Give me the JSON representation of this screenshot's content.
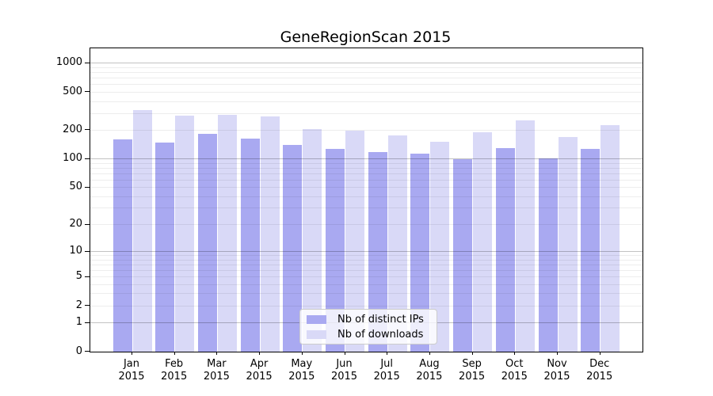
{
  "chart": {
    "title": "GeneRegionScan 2015"
  },
  "legend": {
    "items": [
      {
        "label": "Nb of distinct IPs",
        "key": "ips"
      },
      {
        "label": "Nb of downloads",
        "key": "downloads"
      }
    ]
  },
  "colors": {
    "ips": "#a9a9f1",
    "downloads": "#d9d9f7",
    "grid_major": "rgba(0,0,0,0.24)",
    "grid_minor": "rgba(0,0,0,0.07)",
    "axis": "#000000",
    "legend_border": "#cccccc",
    "legend_bg": "rgba(255,255,255,0.8)"
  },
  "x_axis": {
    "year": "2015",
    "months": [
      "Jan",
      "Feb",
      "Mar",
      "Apr",
      "May",
      "Jun",
      "Jul",
      "Aug",
      "Sep",
      "Oct",
      "Nov",
      "Dec"
    ]
  },
  "y_axis": {
    "tick_labels": [
      1000,
      500,
      200,
      100,
      50,
      20,
      10,
      5,
      2,
      1,
      0
    ],
    "scale": "log10(x+1)"
  },
  "chart_data": {
    "type": "bar",
    "title": "GeneRegionScan 2015",
    "categories": [
      "Jan 2015",
      "Feb 2015",
      "Mar 2015",
      "Apr 2015",
      "May 2015",
      "Jun 2015",
      "Jul 2015",
      "Aug 2015",
      "Sep 2015",
      "Oct 2015",
      "Nov 2015",
      "Dec 2015"
    ],
    "series": [
      {
        "name": "Nb of distinct IPs",
        "values": [
          161,
          150,
          183,
          164,
          141,
          128,
          119,
          113,
          100,
          131,
          102,
          127
        ]
      },
      {
        "name": "Nb of downloads",
        "values": [
          327,
          285,
          291,
          277,
          204,
          199,
          177,
          152,
          192,
          255,
          169,
          224
        ]
      }
    ],
    "xlabel": "",
    "ylabel": "",
    "y_ticks": [
      0,
      1,
      2,
      5,
      10,
      20,
      50,
      100,
      200,
      500,
      1000
    ],
    "y_scale": "log1p",
    "ylim": [
      0,
      1435
    ],
    "grid": "horizontal",
    "grid_major_at": [
      1,
      10,
      100,
      1000
    ],
    "legend_position": "lower-center"
  }
}
